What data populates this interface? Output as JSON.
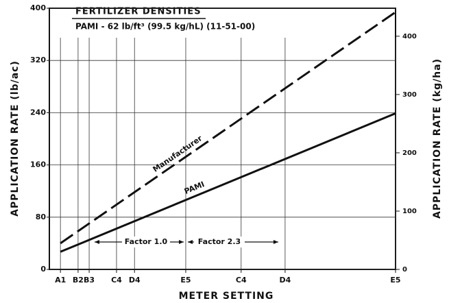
{
  "chart_data": {
    "type": "line",
    "title": "FERTILIZER DENSITIES",
    "subtitle": "PAMI - 62 lb/ft³ (99.5 kg/hL) (11-51-00)",
    "x_label": "METER SETTING",
    "y_label": "APPLICATION RATE (lb/ac)",
    "y2_label": "APPLICATION RATE (kg/ha)",
    "xlim": [
      0,
      100
    ],
    "xticks": [
      {
        "value": 3.2,
        "label": "A1"
      },
      {
        "value": 8.3,
        "label": "B2"
      },
      {
        "value": 11.5,
        "label": "B3"
      },
      {
        "value": 19.4,
        "label": "C4"
      },
      {
        "value": 24.6,
        "label": "D4"
      },
      {
        "value": 39.4,
        "label": "E5"
      },
      {
        "value": 55.4,
        "label": "C4"
      },
      {
        "value": 68.1,
        "label": "D4"
      },
      {
        "value": 100,
        "label": "E5"
      }
    ],
    "ylim": [
      0,
      400
    ],
    "yticks": [
      0,
      80,
      160,
      240,
      320,
      400
    ],
    "y2lim": [
      0,
      448
    ],
    "y2ticks": [
      0,
      100,
      200,
      300,
      400
    ],
    "grid": true,
    "x": [
      3.2,
      100
    ],
    "series": [
      {
        "name": "Manufacturer",
        "color": "#111111",
        "dash": true,
        "values": [
          40,
          394
        ]
      },
      {
        "name": "PAMI",
        "color": "#111111",
        "dash": false,
        "values": [
          27,
          239
        ]
      }
    ],
    "annotations": [
      "Factor 1.0",
      "Factor 2.3"
    ]
  }
}
